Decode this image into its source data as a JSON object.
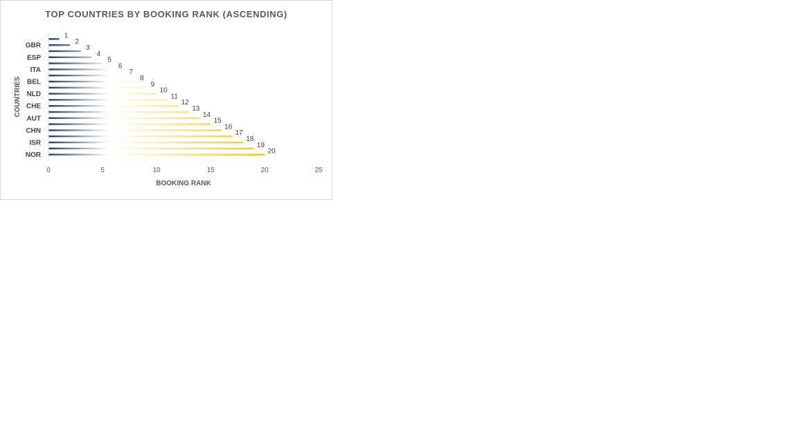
{
  "chart_data": {
    "type": "bar",
    "orientation": "horizontal",
    "title": "TOP COUNTRIES BY BOOKING RANK (ASCENDING)",
    "xlabel": "BOOKING RANK",
    "ylabel": "COUNTRIES",
    "categories": [
      "",
      "GBR",
      "",
      "ESP",
      "",
      "ITA",
      "",
      "BEL",
      "",
      "NLD",
      "",
      "CHE",
      "",
      "AUT",
      "",
      "CHN",
      "",
      "ISR",
      "",
      "NOR"
    ],
    "values": [
      1,
      2,
      3,
      4,
      5,
      6,
      7,
      8,
      9,
      10,
      11,
      12,
      13,
      14,
      15,
      16,
      17,
      18,
      19,
      20
    ],
    "data_labels": [
      "1",
      "2",
      "3",
      "4",
      "5",
      "6",
      "7",
      "8",
      "9",
      "10",
      "11",
      "12",
      "13",
      "14",
      "15",
      "16",
      "17",
      "18",
      "19",
      "20"
    ],
    "xlim": [
      0,
      25
    ],
    "xticks": [
      "0",
      "5",
      "10",
      "15",
      "20",
      "25"
    ],
    "grid": false,
    "legend": "none",
    "bar_gradient": [
      "#1f3864",
      "#ffffff",
      "#ffc000"
    ]
  }
}
